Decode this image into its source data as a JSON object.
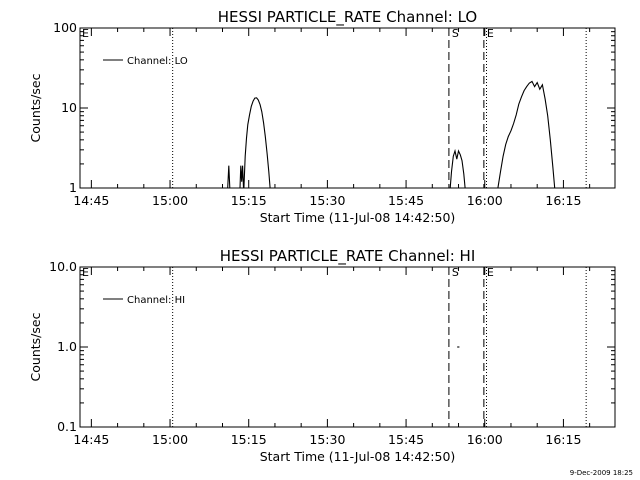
{
  "footer_date": "9-Dec-2009 18:25",
  "chart_data": [
    {
      "type": "line",
      "title": "HESSI PARTICLE_RATE Channel: LO",
      "xlabel": "Start Time (11-Jul-08 14:42:50)",
      "ylabel": "Counts/sec",
      "yscale": "log",
      "ylim": [
        1,
        100
      ],
      "y_ticks": [
        "1",
        "10",
        "100"
      ],
      "x_ticks": [
        "14:45",
        "15:00",
        "15:15",
        "15:30",
        "15:45",
        "16:00",
        "16:15"
      ],
      "xlim": [
        "14:42:50",
        "16:24:50"
      ],
      "legend": "Channel: LO",
      "legend_position": "top-left",
      "markers": [
        {
          "label": "E",
          "time": "14:42:50",
          "style": "none"
        },
        {
          "label": "",
          "time": "15:00:30",
          "style": "dotted"
        },
        {
          "label": "S",
          "time": "15:53:10",
          "style": "dashed"
        },
        {
          "label": "E",
          "time": "15:59:50",
          "style": "dashed"
        },
        {
          "label": "",
          "time": "16:00:20",
          "style": "dotted"
        },
        {
          "label": "",
          "time": "16:19:20",
          "style": "dotted"
        }
      ],
      "series": [
        {
          "name": "Channel: LO",
          "points": [
            [
              "15:11:00",
              1
            ],
            [
              "15:11:12",
              1.9
            ],
            [
              "15:11:24",
              1
            ],
            [
              "15:13:20",
              1
            ],
            [
              "15:13:30",
              1.9
            ],
            [
              "15:13:40",
              1.2
            ],
            [
              "15:13:50",
              1.9
            ],
            [
              "15:14:00",
              1
            ],
            [
              "15:14:05",
              1
            ],
            [
              "15:14:20",
              2.5
            ],
            [
              "15:14:35",
              4.2
            ],
            [
              "15:14:50",
              6.2
            ],
            [
              "15:15:10",
              8.3
            ],
            [
              "15:15:30",
              10.5
            ],
            [
              "15:15:50",
              12.2
            ],
            [
              "15:16:10",
              13.3
            ],
            [
              "15:16:30",
              13.4
            ],
            [
              "15:16:50",
              12.6
            ],
            [
              "15:17:10",
              11
            ],
            [
              "15:17:30",
              9
            ],
            [
              "15:17:50",
              6.5
            ],
            [
              "15:18:10",
              4.4
            ],
            [
              "15:18:30",
              2.7
            ],
            [
              "15:18:50",
              1.6
            ],
            [
              "15:19:05",
              1
            ],
            [
              "15:53:25",
              1
            ],
            [
              "15:53:40",
              1.6
            ],
            [
              "15:54:00",
              2.5
            ],
            [
              "15:54:20",
              2.9
            ],
            [
              "15:54:40",
              2.3
            ],
            [
              "15:55:00",
              2.9
            ],
            [
              "15:55:20",
              2.6
            ],
            [
              "15:55:40",
              2.2
            ],
            [
              "15:56:00",
              1.5
            ],
            [
              "15:56:15",
              1
            ],
            [
              "16:02:30",
              1
            ],
            [
              "16:03:00",
              1.6
            ],
            [
              "16:03:30",
              2.5
            ],
            [
              "16:04:00",
              3.5
            ],
            [
              "16:04:30",
              4.4
            ],
            [
              "16:05:00",
              5.2
            ],
            [
              "16:05:30",
              6.4
            ],
            [
              "16:06:00",
              8.2
            ],
            [
              "16:06:30",
              11.2
            ],
            [
              "16:07:00",
              13.8
            ],
            [
              "16:07:30",
              16.5
            ],
            [
              "16:08:00",
              18.5
            ],
            [
              "16:08:30",
              20.5
            ],
            [
              "16:09:00",
              21.5
            ],
            [
              "16:09:30",
              18.5
            ],
            [
              "16:10:00",
              20.8
            ],
            [
              "16:10:30",
              17.2
            ],
            [
              "16:11:00",
              19.5
            ],
            [
              "16:11:30",
              13
            ],
            [
              "16:12:00",
              8
            ],
            [
              "16:12:30",
              4
            ],
            [
              "16:13:00",
              1.8
            ],
            [
              "16:13:20",
              1
            ]
          ]
        }
      ]
    },
    {
      "type": "line",
      "title": "HESSI PARTICLE_RATE Channel: HI",
      "xlabel": "Start Time (11-Jul-08 14:42:50)",
      "ylabel": "Counts/sec",
      "yscale": "log",
      "ylim": [
        0.1,
        10
      ],
      "y_ticks": [
        "0.1",
        "1.0",
        "10.0"
      ],
      "x_ticks": [
        "14:45",
        "15:00",
        "15:15",
        "15:30",
        "15:45",
        "16:00",
        "16:15"
      ],
      "xlim": [
        "14:42:50",
        "16:24:50"
      ],
      "legend": "Channel: HI",
      "legend_position": "top-left",
      "markers": [
        {
          "label": "E",
          "time": "14:42:50",
          "style": "none"
        },
        {
          "label": "",
          "time": "15:00:30",
          "style": "dotted"
        },
        {
          "label": "S",
          "time": "15:53:10",
          "style": "dashed"
        },
        {
          "label": "E",
          "time": "15:59:50",
          "style": "dashed"
        },
        {
          "label": "",
          "time": "16:00:20",
          "style": "dotted"
        },
        {
          "label": "",
          "time": "16:19:20",
          "style": "dotted"
        }
      ],
      "series": [
        {
          "name": "Channel: HI",
          "points": [
            [
              "15:54:45",
              1.0
            ],
            [
              "15:55:10",
              1.0
            ]
          ]
        }
      ]
    }
  ]
}
